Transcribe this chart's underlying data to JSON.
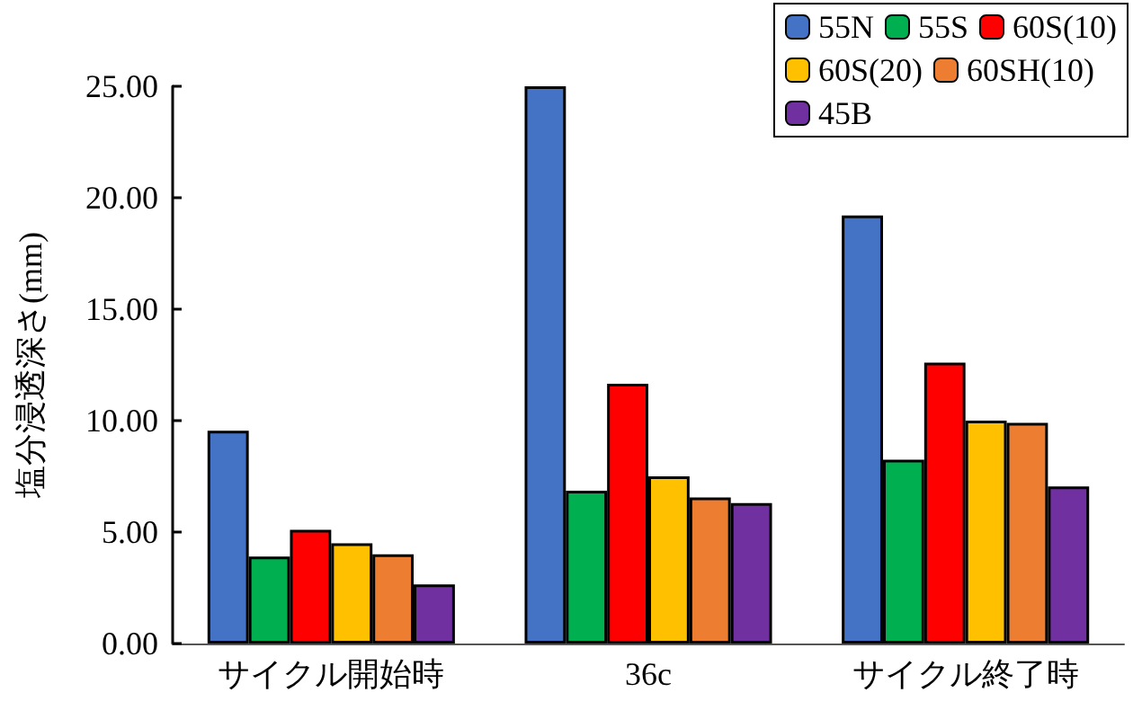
{
  "chart_data": {
    "type": "bar",
    "ylabel": "塩分浸透深さ(mm)",
    "categories": [
      "サイクル開始時",
      "36c",
      "サイクル終了時"
    ],
    "series": [
      {
        "name": "55N",
        "color": "#4472c4",
        "values": [
          9.55,
          25,
          19.2
        ]
      },
      {
        "name": "55S",
        "color": "#00b050",
        "values": [
          3.9,
          6.85,
          8.25
        ]
      },
      {
        "name": "60S(10)",
        "color": "#ff0000",
        "values": [
          5.1,
          11.65,
          12.6
        ]
      },
      {
        "name": "60S(20)",
        "color": "#ffc000",
        "values": [
          4.5,
          7.5,
          10.0
        ]
      },
      {
        "name": "60SH(10)",
        "color": "#ed7d31",
        "values": [
          4.0,
          6.55,
          9.9
        ]
      },
      {
        "name": "45B",
        "color": "#7030a0",
        "values": [
          2.65,
          6.3,
          7.05
        ]
      }
    ],
    "ylim": [
      0,
      25
    ],
    "yticks": [
      {
        "value": 0,
        "label": "0.00"
      },
      {
        "value": 5,
        "label": "5.00"
      },
      {
        "value": 10,
        "label": "10.00"
      },
      {
        "value": 15,
        "label": "15.00"
      },
      {
        "value": 20,
        "label": "20.00"
      },
      {
        "value": 25,
        "label": "25.00"
      }
    ],
    "grid": false,
    "legend": "top right"
  }
}
